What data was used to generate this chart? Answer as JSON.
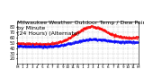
{
  "title": "Milwaukee Weather Outdoor Temp / Dew Point\nby Minute\n(24 Hours) (Alternate)",
  "title_fontsize": 4.5,
  "background_color": "#ffffff",
  "plot_bg_color": "#ffffff",
  "grid_color": "#aaaaaa",
  "temp_color": "#ff0000",
  "dew_color": "#0000ff",
  "xlim": [
    0,
    1440
  ],
  "ylim": [
    10,
    90
  ],
  "yticks": [
    20,
    30,
    40,
    50,
    60,
    70,
    80
  ],
  "xtick_labels": [
    "M",
    "1",
    "2",
    "3",
    "4",
    "5",
    "6",
    "7",
    "8",
    "9",
    "10",
    "11",
    "N",
    "1",
    "2",
    "3",
    "4",
    "5",
    "6",
    "7",
    "8",
    "9",
    "10",
    "11",
    "M"
  ],
  "ylabel_fontsize": 3.5,
  "xlabel_fontsize": 3.0
}
